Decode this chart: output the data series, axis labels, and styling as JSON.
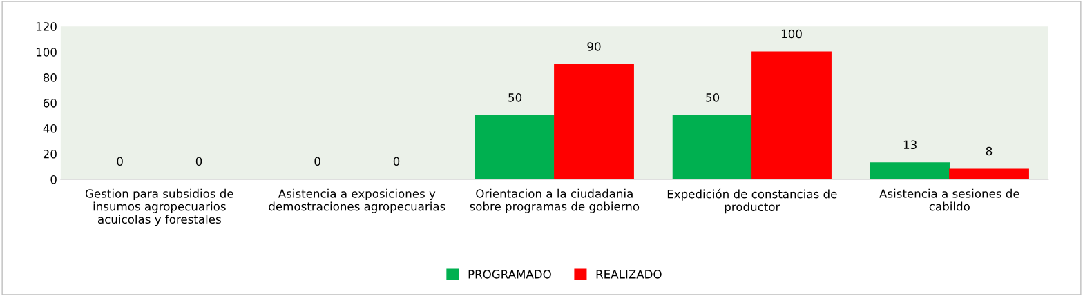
{
  "chart_data": {
    "type": "bar",
    "categories": [
      "Gestion para subsidios de insumos agropecuarios acuicolas y forestales",
      "Asistencia a exposiciones y demostraciones agropecuarias",
      "Orientacion a la ciudadania sobre programas de gobierno",
      "Expedición de constancias de productor",
      "Asistencia a sesiones de cabildo"
    ],
    "series": [
      {
        "name": "PROGRAMADO",
        "color": "#00b050",
        "values": [
          0,
          0,
          50,
          50,
          13
        ]
      },
      {
        "name": "REALIZADO",
        "color": "#ff0000",
        "values": [
          0,
          0,
          90,
          100,
          8
        ]
      }
    ],
    "ylim": [
      0,
      120
    ],
    "yticks": [
      0,
      20,
      40,
      60,
      80,
      100,
      120
    ],
    "data_labels": true,
    "legend": "bottom",
    "grid": false
  }
}
